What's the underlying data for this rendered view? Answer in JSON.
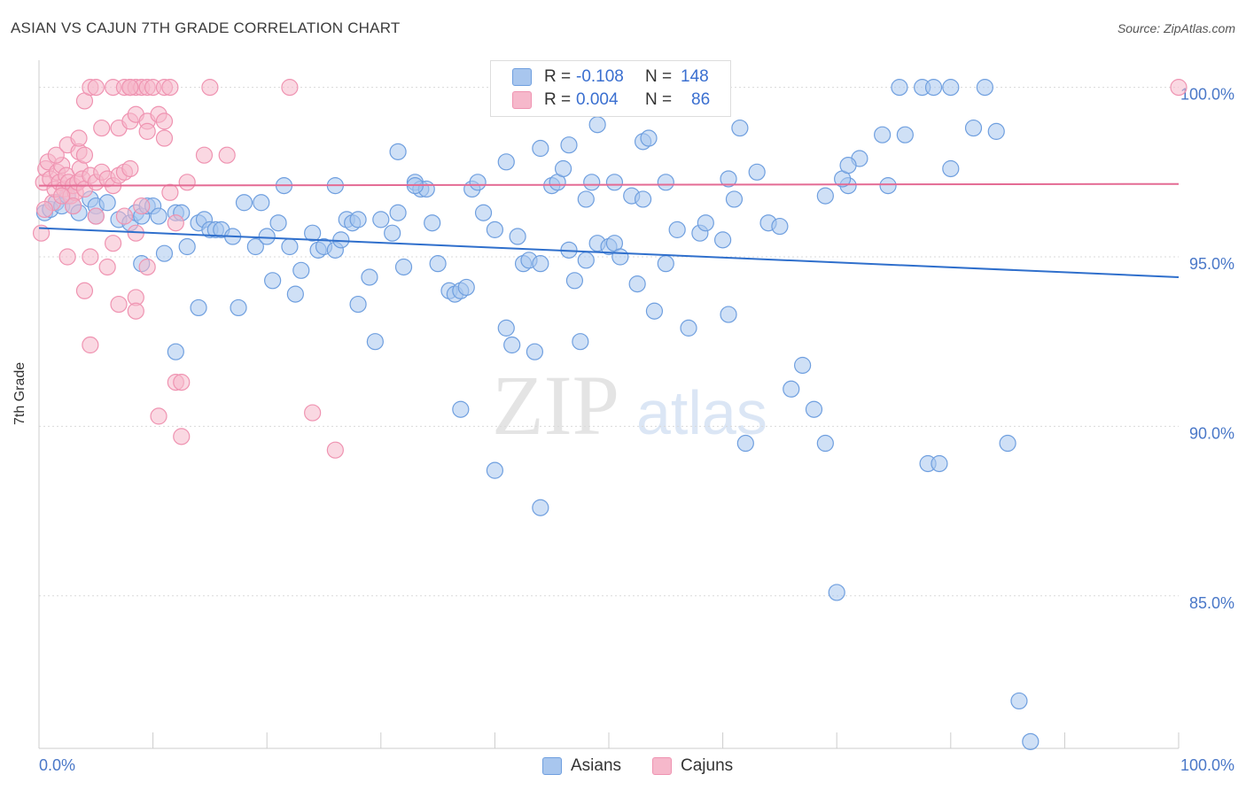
{
  "title": "ASIAN VS CAJUN 7TH GRADE CORRELATION CHART",
  "source": "Source: ZipAtlas.com",
  "watermark": {
    "zip": "ZIP",
    "atlas": "atlas"
  },
  "legend": {
    "rows": [
      {
        "r_label": "R =",
        "r_value": "-0.108",
        "n_label": "N =",
        "n_value": "148"
      },
      {
        "r_label": "R =",
        "r_value": "0.004",
        "n_label": "N =",
        "n_value": "86"
      }
    ]
  },
  "bottom_legend": {
    "asians": "Asians",
    "cajuns": "Cajuns"
  },
  "colors": {
    "asians_fill": "#a8c6ee",
    "asians_stroke": "#6f9fdf",
    "asians_line": "#2f6fcc",
    "cajuns_fill": "#f6b8cb",
    "cajuns_stroke": "#ef93b1",
    "cajuns_line": "#e46b94",
    "tick_label": "#4a78c8",
    "grid": "#d9d9d9"
  },
  "chart_data": {
    "type": "scatter",
    "xlabel": "",
    "ylabel": "7th Grade",
    "xlim": [
      0,
      100
    ],
    "ylim": [
      80.5,
      100.8
    ],
    "x_tick_labels": {
      "left": "0.0%",
      "right": "100.0%"
    },
    "y_ticks": [
      {
        "value": 100,
        "label": "100.0%"
      },
      {
        "value": 95,
        "label": "95.0%"
      },
      {
        "value": 90,
        "label": "90.0%"
      },
      {
        "value": 85,
        "label": "85.0%"
      }
    ],
    "grid": true,
    "series": [
      {
        "name": "Asians",
        "trend": {
          "x": [
            0,
            100
          ],
          "y": [
            95.85,
            94.4
          ]
        },
        "points": [
          [
            0.5,
            96.3
          ],
          [
            1,
            96.4
          ],
          [
            1.5,
            96.6
          ],
          [
            2,
            96.5
          ],
          [
            2.5,
            96.8
          ],
          [
            3,
            96.5
          ],
          [
            3.5,
            96.3
          ],
          [
            4.5,
            96.7
          ],
          [
            5,
            96.5
          ],
          [
            6,
            96.6
          ],
          [
            5,
            96.2
          ],
          [
            7,
            96.1
          ],
          [
            8,
            96.0
          ],
          [
            8.5,
            96.3
          ],
          [
            9,
            96.2
          ],
          [
            9.5,
            96.5
          ],
          [
            10,
            96.5
          ],
          [
            10.5,
            96.2
          ],
          [
            12,
            96.3
          ],
          [
            12.5,
            96.3
          ],
          [
            13,
            95.3
          ],
          [
            14,
            96.0
          ],
          [
            14.5,
            96.1
          ],
          [
            15,
            95.8
          ],
          [
            15.5,
            95.8
          ],
          [
            16,
            95.8
          ],
          [
            17,
            95.6
          ],
          [
            18,
            96.6
          ],
          [
            19,
            95.3
          ],
          [
            19.5,
            96.6
          ],
          [
            20,
            95.6
          ],
          [
            21,
            96.0
          ],
          [
            22,
            95.3
          ],
          [
            23,
            94.6
          ],
          [
            24,
            95.7
          ],
          [
            24.5,
            95.2
          ],
          [
            25,
            95.3
          ],
          [
            26,
            95.2
          ],
          [
            26.5,
            95.5
          ],
          [
            27,
            96.1
          ],
          [
            27.5,
            96.0
          ],
          [
            28,
            96.1
          ],
          [
            29,
            94.4
          ],
          [
            30,
            96.1
          ],
          [
            31,
            95.7
          ],
          [
            31.5,
            96.3
          ],
          [
            32,
            94.7
          ],
          [
            33,
            97.2
          ],
          [
            33.5,
            97.0
          ],
          [
            34,
            97.0
          ],
          [
            34.5,
            96.0
          ],
          [
            35,
            94.8
          ],
          [
            36,
            94.0
          ],
          [
            36.5,
            93.9
          ],
          [
            37,
            94.0
          ],
          [
            37.5,
            94.1
          ],
          [
            38,
            97.0
          ],
          [
            38.5,
            97.2
          ],
          [
            39,
            96.3
          ],
          [
            40,
            95.8
          ],
          [
            41,
            92.9
          ],
          [
            41.5,
            92.4
          ],
          [
            42,
            95.6
          ],
          [
            42.5,
            94.8
          ],
          [
            43,
            94.9
          ],
          [
            43.5,
            92.2
          ],
          [
            44,
            94.8
          ],
          [
            45,
            97.1
          ],
          [
            45.5,
            97.2
          ],
          [
            46,
            97.6
          ],
          [
            46.5,
            95.2
          ],
          [
            47,
            94.3
          ],
          [
            47.5,
            92.5
          ],
          [
            48,
            96.7
          ],
          [
            49,
            95.4
          ],
          [
            50,
            95.3
          ],
          [
            50.5,
            95.4
          ],
          [
            51,
            95.0
          ],
          [
            52,
            96.8
          ],
          [
            52.5,
            94.2
          ],
          [
            53,
            96.7
          ],
          [
            54,
            93.4
          ],
          [
            55,
            94.8
          ],
          [
            56,
            95.8
          ],
          [
            57,
            92.9
          ],
          [
            58,
            95.7
          ],
          [
            58.5,
            96.0
          ],
          [
            60,
            95.5
          ],
          [
            60.5,
            93.3
          ],
          [
            61,
            96.7
          ],
          [
            61.5,
            98.8
          ],
          [
            62,
            89.5
          ],
          [
            63,
            97.5
          ],
          [
            64,
            96.0
          ],
          [
            65,
            95.9
          ],
          [
            66,
            91.1
          ],
          [
            67,
            91.8
          ],
          [
            68,
            90.5
          ],
          [
            69,
            89.5
          ],
          [
            70,
            85.1
          ],
          [
            71,
            97.1
          ],
          [
            72,
            97.9
          ],
          [
            74,
            98.6
          ],
          [
            76,
            98.6
          ],
          [
            78,
            88.9
          ],
          [
            79,
            88.9
          ],
          [
            80,
            97.6
          ],
          [
            82,
            98.8
          ],
          [
            84,
            98.7
          ],
          [
            85,
            89.5
          ],
          [
            86,
            81.9
          ],
          [
            87,
            80.7
          ],
          [
            41,
            97.8
          ],
          [
            44,
            98.2
          ],
          [
            46.5,
            98.3
          ],
          [
            48.5,
            97.2
          ],
          [
            50.5,
            97.2
          ],
          [
            53,
            98.4
          ],
          [
            55,
            97.2
          ],
          [
            49,
            98.9
          ],
          [
            53.5,
            98.5
          ],
          [
            60.5,
            97.3
          ],
          [
            69,
            96.8
          ],
          [
            70.5,
            97.3
          ],
          [
            71,
            97.7
          ],
          [
            74.5,
            97.1
          ],
          [
            75.5,
            100
          ],
          [
            77.5,
            100
          ],
          [
            78.5,
            100
          ],
          [
            80,
            100
          ],
          [
            83,
            100
          ],
          [
            31.5,
            98.1
          ],
          [
            33,
            97.1
          ],
          [
            26,
            97.1
          ],
          [
            21.5,
            97.1
          ],
          [
            17.5,
            93.5
          ],
          [
            14,
            93.5
          ],
          [
            12,
            92.2
          ],
          [
            11,
            95.1
          ],
          [
            9,
            94.8
          ],
          [
            20.5,
            94.3
          ],
          [
            22.5,
            93.9
          ],
          [
            28,
            93.6
          ],
          [
            29.5,
            92.5
          ],
          [
            37,
            90.5
          ],
          [
            40,
            88.7
          ],
          [
            44,
            87.6
          ],
          [
            48,
            94.9
          ]
        ]
      },
      {
        "name": "Cajuns",
        "trend": {
          "x": [
            0,
            100
          ],
          "y": [
            97.1,
            97.15
          ]
        },
        "points": [
          [
            0.2,
            95.7
          ],
          [
            0.4,
            97.2
          ],
          [
            0.6,
            97.6
          ],
          [
            0.8,
            97.8
          ],
          [
            1,
            97.3
          ],
          [
            1.2,
            96.6
          ],
          [
            1.4,
            97.0
          ],
          [
            1.6,
            97.5
          ],
          [
            1.8,
            97.2
          ],
          [
            2,
            97.7
          ],
          [
            2.2,
            97.0
          ],
          [
            2.4,
            97.4
          ],
          [
            2.6,
            97.2
          ],
          [
            2.8,
            96.8
          ],
          [
            3,
            97.1
          ],
          [
            3.2,
            96.9
          ],
          [
            3.4,
            97.2
          ],
          [
            3.6,
            97.6
          ],
          [
            3.8,
            97.3
          ],
          [
            4,
            97.0
          ],
          [
            1.5,
            98.0
          ],
          [
            2.5,
            98.3
          ],
          [
            3.5,
            98.1
          ],
          [
            4.5,
            97.4
          ],
          [
            5,
            97.2
          ],
          [
            5.5,
            97.5
          ],
          [
            6,
            97.3
          ],
          [
            6.5,
            97.1
          ],
          [
            7,
            97.4
          ],
          [
            7.5,
            97.5
          ],
          [
            8,
            97.6
          ],
          [
            3.5,
            98.5
          ],
          [
            4,
            98.0
          ],
          [
            5.5,
            98.8
          ],
          [
            7,
            98.8
          ],
          [
            8,
            99.0
          ],
          [
            8.5,
            99.2
          ],
          [
            9.5,
            99.0
          ],
          [
            10.5,
            99.2
          ],
          [
            11,
            99.0
          ],
          [
            4,
            99.6
          ],
          [
            4.5,
            100
          ],
          [
            5,
            100
          ],
          [
            6.5,
            100
          ],
          [
            7.5,
            100
          ],
          [
            8,
            100
          ],
          [
            8.5,
            100
          ],
          [
            9,
            100
          ],
          [
            9.5,
            100
          ],
          [
            10,
            100
          ],
          [
            11,
            100
          ],
          [
            11.5,
            100
          ],
          [
            15,
            100
          ],
          [
            22,
            100
          ],
          [
            8,
            100
          ],
          [
            9.5,
            98.7
          ],
          [
            11,
            98.5
          ],
          [
            14.5,
            98.0
          ],
          [
            16.5,
            98.0
          ],
          [
            13,
            97.2
          ],
          [
            2.5,
            95.0
          ],
          [
            4.5,
            95.0
          ],
          [
            6.5,
            95.4
          ],
          [
            8.5,
            95.7
          ],
          [
            9,
            96.5
          ],
          [
            6,
            94.7
          ],
          [
            9.5,
            94.7
          ],
          [
            4,
            94.0
          ],
          [
            7,
            93.6
          ],
          [
            8.5,
            93.8
          ],
          [
            8.5,
            93.4
          ],
          [
            4.5,
            92.4
          ],
          [
            12,
            91.3
          ],
          [
            12.5,
            91.3
          ],
          [
            10.5,
            90.3
          ],
          [
            12.5,
            89.7
          ],
          [
            24,
            90.4
          ],
          [
            26,
            89.3
          ],
          [
            11.5,
            96.9
          ],
          [
            5,
            96.2
          ],
          [
            7.5,
            96.2
          ],
          [
            12,
            96.0
          ],
          [
            3,
            96.5
          ],
          [
            2,
            96.8
          ],
          [
            100,
            100
          ],
          [
            0.5,
            96.4
          ]
        ]
      }
    ]
  }
}
